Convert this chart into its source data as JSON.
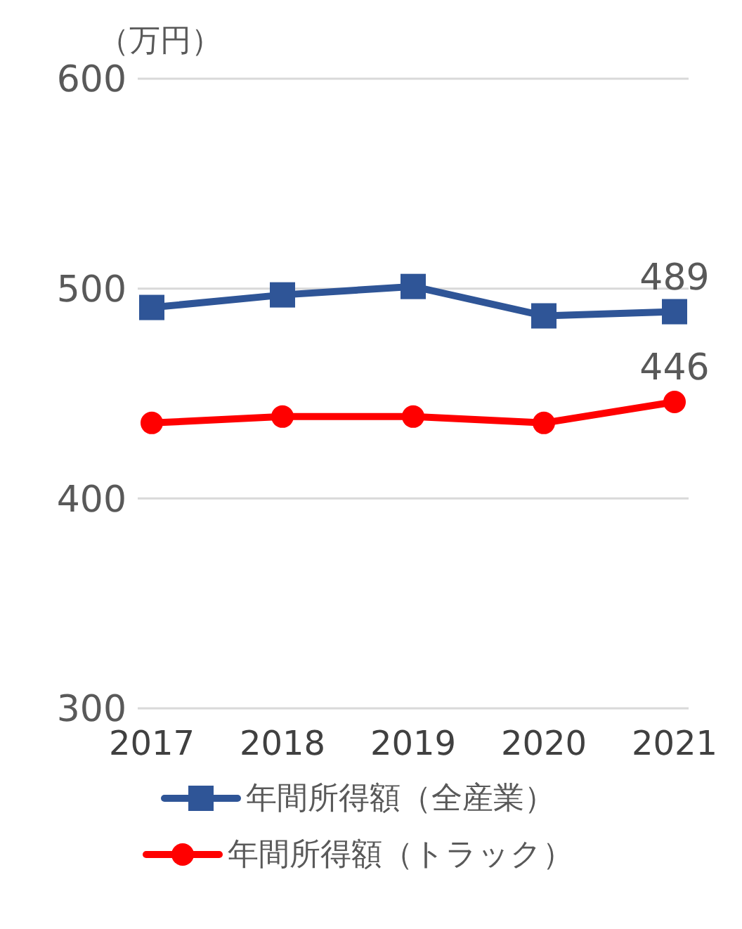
{
  "chart_data": {
    "type": "line",
    "ylabel": "（万円）",
    "categories": [
      "2017",
      "2018",
      "2019",
      "2020",
      "2021"
    ],
    "series": [
      {
        "name": "年間所得額（全産業）",
        "color": "#2f5597",
        "marker": "square",
        "values": [
          491,
          497,
          501,
          487,
          489
        ],
        "value_labels": [
          null,
          null,
          null,
          null,
          "489"
        ]
      },
      {
        "name": "年間所得額（トラック）",
        "color": "#ff0000",
        "marker": "circle",
        "values": [
          436,
          439,
          439,
          436,
          446
        ],
        "value_labels": [
          null,
          null,
          null,
          null,
          "446"
        ]
      }
    ],
    "ylim": [
      300,
      600
    ],
    "yticks": [
      300,
      400,
      500,
      600
    ],
    "grid": "y",
    "legend": "bottom"
  }
}
